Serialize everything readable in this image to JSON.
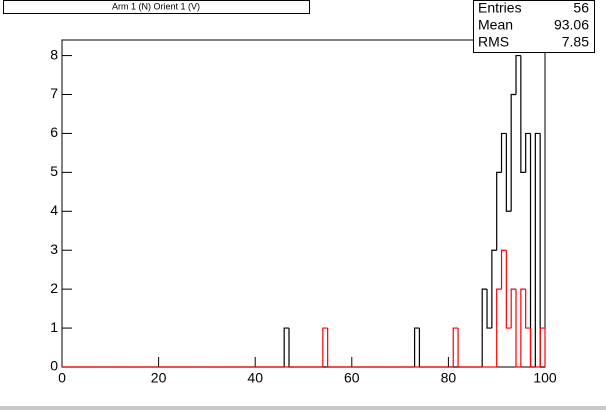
{
  "chart_data": {
    "type": "histogram",
    "title": "Arm 1 (N) Orient 1 (V)",
    "bins": [
      0,
      1,
      2,
      3,
      4,
      5,
      6,
      7,
      8,
      9,
      10,
      11,
      12,
      13,
      14,
      15,
      16,
      17,
      18,
      19,
      20,
      21,
      22,
      23,
      24,
      25,
      26,
      27,
      28,
      29,
      30,
      31,
      32,
      33,
      34,
      35,
      36,
      37,
      38,
      39,
      40,
      41,
      42,
      43,
      44,
      45,
      46,
      47,
      48,
      49,
      50,
      51,
      52,
      53,
      54,
      55,
      56,
      57,
      58,
      59,
      60,
      61,
      62,
      63,
      64,
      65,
      66,
      67,
      68,
      69,
      70,
      71,
      72,
      73,
      74,
      75,
      76,
      77,
      78,
      79,
      80,
      81,
      82,
      83,
      84,
      85,
      86,
      87,
      88,
      89,
      90,
      91,
      92,
      93,
      94,
      95,
      96,
      97,
      98,
      99,
      100
    ],
    "series": [
      {
        "color": "#000000",
        "values": [
          0,
          0,
          0,
          0,
          0,
          0,
          0,
          0,
          0,
          0,
          0,
          0,
          0,
          0,
          0,
          0,
          0,
          0,
          0,
          0,
          0,
          0,
          0,
          0,
          0,
          0,
          0,
          0,
          0,
          0,
          0,
          0,
          0,
          0,
          0,
          0,
          0,
          0,
          0,
          0,
          0,
          0,
          0,
          0,
          0,
          0,
          1,
          0,
          0,
          0,
          0,
          0,
          0,
          0,
          0,
          0,
          0,
          0,
          0,
          0,
          0,
          0,
          0,
          0,
          0,
          0,
          0,
          0,
          0,
          0,
          0,
          0,
          0,
          1,
          0,
          0,
          0,
          0,
          0,
          0,
          0,
          0,
          0,
          0,
          0,
          0,
          0,
          2,
          1,
          3,
          5,
          6,
          4,
          7,
          8,
          5,
          6,
          0,
          6,
          0
        ]
      },
      {
        "color": "#ff0000",
        "values": [
          0,
          0,
          0,
          0,
          0,
          0,
          0,
          0,
          0,
          0,
          0,
          0,
          0,
          0,
          0,
          0,
          0,
          0,
          0,
          0,
          0,
          0,
          0,
          0,
          0,
          0,
          0,
          0,
          0,
          0,
          0,
          0,
          0,
          0,
          0,
          0,
          0,
          0,
          0,
          0,
          0,
          0,
          0,
          0,
          0,
          0,
          0,
          0,
          0,
          0,
          0,
          0,
          0,
          0,
          1,
          0,
          0,
          0,
          0,
          0,
          0,
          0,
          0,
          0,
          0,
          0,
          0,
          0,
          0,
          0,
          0,
          0,
          0,
          0,
          0,
          0,
          0,
          0,
          0,
          0,
          0,
          1,
          0,
          0,
          0,
          0,
          0,
          0,
          0,
          0,
          2,
          3,
          1,
          2,
          0,
          2,
          1,
          0,
          0,
          1
        ]
      }
    ],
    "xlim": [
      0,
      100
    ],
    "xticks": [
      0,
      20,
      40,
      60,
      80,
      100
    ],
    "ylim": [
      0,
      8.4
    ],
    "yticks": [
      0,
      1,
      2,
      3,
      4,
      5,
      6,
      7,
      8
    ],
    "stats": [
      {
        "label": "Entries",
        "value": 56
      },
      {
        "label": "Mean",
        "value": 93.06
      },
      {
        "label": "RMS",
        "value": 7.85
      }
    ]
  }
}
